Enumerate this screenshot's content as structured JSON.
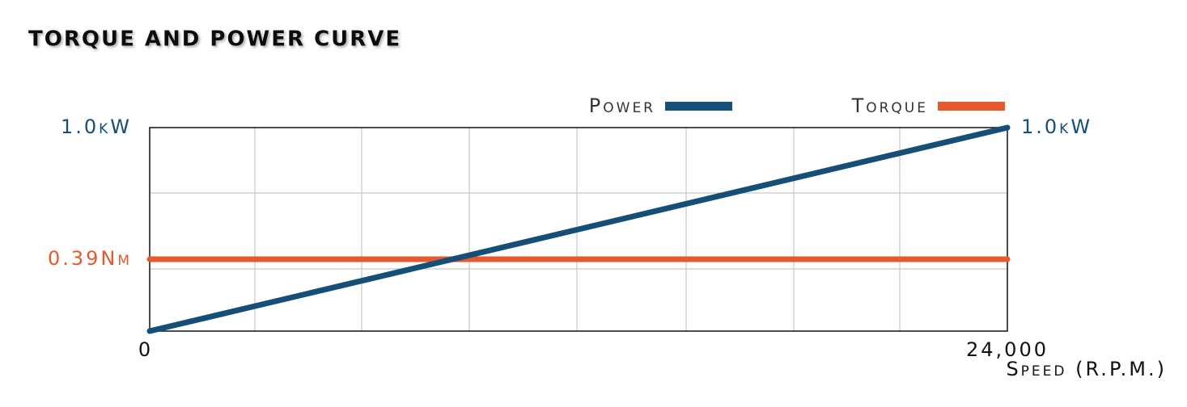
{
  "chart_data": {
    "type": "line",
    "title": "TORQUE AND POWER CURVE",
    "x": [
      0,
      24000
    ],
    "xlim": [
      0,
      24000
    ],
    "xticks": [
      0,
      {
        "value": 24000,
        "label": "24,000"
      }
    ],
    "xlabel": "Speed (R.P.M.)",
    "ylim": [
      0,
      1.105
    ],
    "yticks": [
      {
        "value": 0.39,
        "label": "0.39Nm"
      }
    ],
    "y2lim": [
      0,
      1.0
    ],
    "y2ticks": [
      {
        "value": 1.0,
        "label": "1.0kW"
      }
    ],
    "legend": "top-right",
    "series": [
      {
        "name": "Power",
        "color": "#154f78",
        "axis": "y2",
        "values": [
          0,
          1.0
        ]
      },
      {
        "name": "Torque",
        "color": "#e4592e",
        "values": [
          0.39,
          0.39
        ]
      }
    ]
  }
}
